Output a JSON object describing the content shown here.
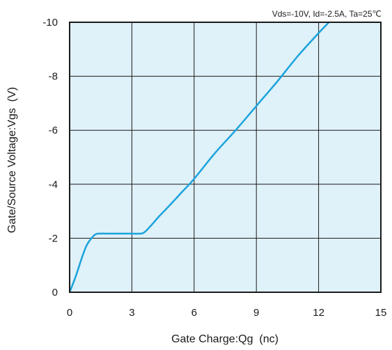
{
  "chart_data": {
    "type": "line",
    "title": "",
    "annotation": "Vds=-10V, Id=-2.5A, Ta=25℃",
    "xlabel": "Gate Charge:Qg  (nc)",
    "ylabel": "Gate/Source Voltage:Vgs  (V)",
    "xlim": [
      0,
      15
    ],
    "ylim": [
      0,
      -10
    ],
    "y_axis_direction": "negative values upward",
    "xticks": [
      "0",
      "3",
      "6",
      "9",
      "12",
      "15"
    ],
    "yticks": [
      "0",
      "-2",
      "-4",
      "-6",
      "-8",
      "-10"
    ],
    "grid": true,
    "legend": "none",
    "plot_background": "#dff1f9",
    "line_color": "#1aa3dc",
    "series": [
      {
        "x": [
          0,
          0.3,
          0.6,
          0.8,
          1.0,
          1.2,
          1.4,
          2.0,
          2.5,
          3.0,
          3.4,
          3.6,
          3.9,
          4.3,
          4.8,
          5.4,
          6.0,
          7.0,
          8.0,
          9.0,
          10.0,
          11.0,
          12.0,
          13.0
        ],
        "y": [
          0,
          -0.6,
          -1.3,
          -1.7,
          -1.95,
          -2.12,
          -2.17,
          -2.17,
          -2.17,
          -2.17,
          -2.17,
          -2.22,
          -2.45,
          -2.8,
          -3.2,
          -3.7,
          -4.2,
          -5.15,
          -6.0,
          -6.9,
          -7.8,
          -8.75,
          -9.6,
          -10.4
        ]
      }
    ]
  }
}
